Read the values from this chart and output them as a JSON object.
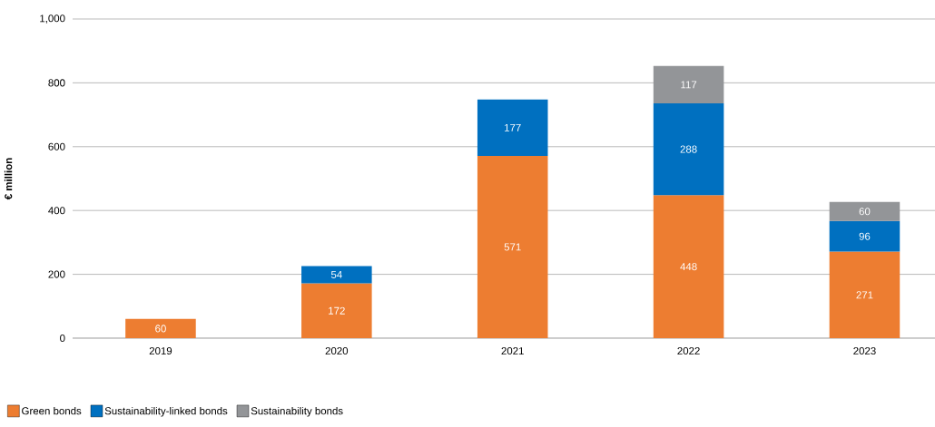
{
  "chart_data": {
    "type": "bar",
    "stacked": true,
    "ylabel": "€ million",
    "categories": [
      "2019",
      "2020",
      "2021",
      "2022",
      "2023"
    ],
    "series": [
      {
        "name": "Green bonds",
        "color": "#ed7d31",
        "values": [
          60,
          172,
          571,
          448,
          271
        ]
      },
      {
        "name": "Sustainability-linked bonds",
        "color": "#0070c0",
        "values": [
          null,
          54,
          177,
          288,
          96
        ]
      },
      {
        "name": "Sustainability bonds",
        "color": "#939598",
        "values": [
          null,
          null,
          null,
          117,
          60
        ]
      }
    ],
    "ylim": [
      0,
      1000
    ],
    "yticks": [
      0,
      200,
      400,
      600,
      800,
      {
        "value": 1000,
        "label": "1,000"
      }
    ],
    "grid": "y",
    "legend": "bottom",
    "data_labels": true
  }
}
